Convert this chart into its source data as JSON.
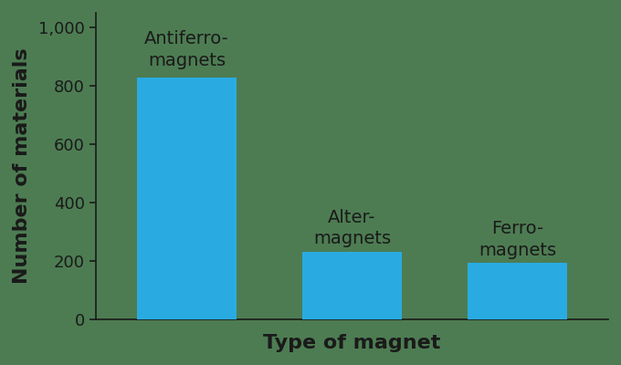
{
  "categories": [
    "Antiferro-\nmagnets",
    "Alter-\nmagnets",
    "Ferro-\nmagnets"
  ],
  "values": [
    827,
    232,
    193
  ],
  "bar_color": "#29ABE2",
  "background_color": "#4d7c52",
  "ylabel": "Number of materials",
  "xlabel": "Type of magnet",
  "ylim": [
    0,
    1050
  ],
  "yticks": [
    0,
    200,
    400,
    600,
    800,
    1000
  ],
  "ytick_labels": [
    "0",
    "200",
    "400",
    "600",
    "800",
    "1,000"
  ],
  "label_fontsize": 16,
  "tick_fontsize": 13,
  "bar_label_fontsize": 14,
  "bar_width": 0.6,
  "plot_bg": "#4d7c52"
}
